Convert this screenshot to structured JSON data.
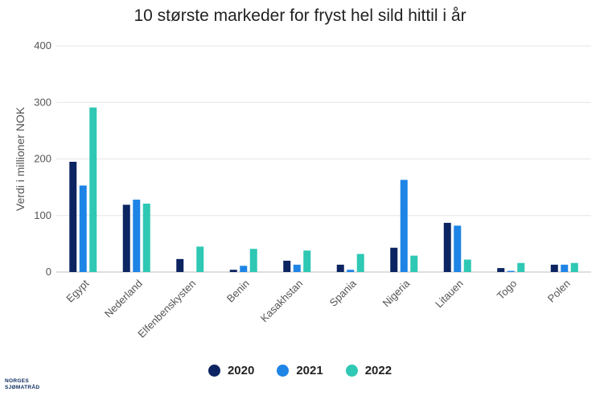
{
  "chart_data": {
    "type": "bar",
    "title": "10 største markeder for fryst hel sild hittil i år",
    "xlabel": "",
    "ylabel": "Verdi i millioner NOK",
    "ylim": [
      0,
      400
    ],
    "yticks": [
      0,
      100,
      200,
      300,
      400
    ],
    "grid": true,
    "legend_position": "bottom",
    "categories": [
      "Egypt",
      "Nederland",
      "Elfenbenskysten",
      "Benin",
      "Kasakhstan",
      "Spania",
      "Nigeria",
      "Litauen",
      "Togo",
      "Polen"
    ],
    "series": [
      {
        "name": "2020",
        "color": "#0c2461",
        "values": [
          195,
          119,
          23,
          4,
          20,
          13,
          43,
          87,
          7,
          13
        ]
      },
      {
        "name": "2021",
        "color": "#1e84e6",
        "values": [
          153,
          128,
          0,
          11,
          13,
          4,
          163,
          82,
          2,
          13
        ]
      },
      {
        "name": "2022",
        "color": "#2ec8b4",
        "values": [
          291,
          121,
          45,
          41,
          38,
          32,
          29,
          22,
          16,
          16
        ]
      }
    ]
  },
  "logo": {
    "line1": "NORGES",
    "line2": "SJØMATRÅD"
  }
}
